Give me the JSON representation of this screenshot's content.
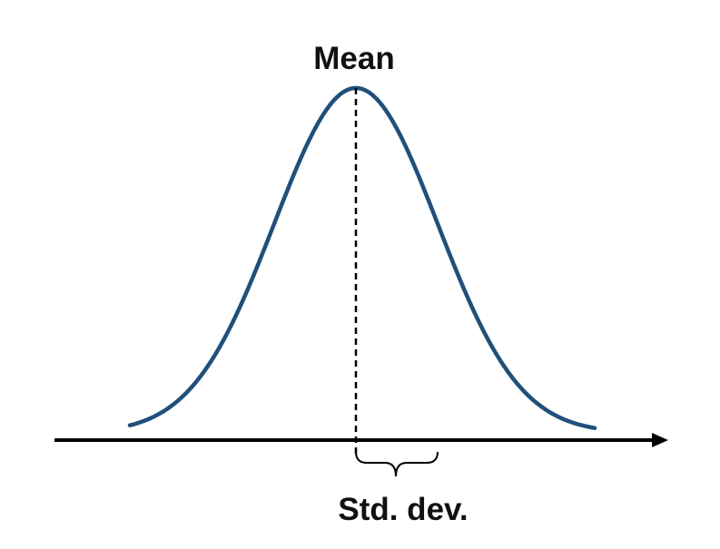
{
  "diagram": {
    "mean_label": "Mean",
    "std_label": "Std. dev."
  },
  "colors": {
    "curve": "#20507a",
    "axis": "#000000",
    "text": "#111111"
  }
}
